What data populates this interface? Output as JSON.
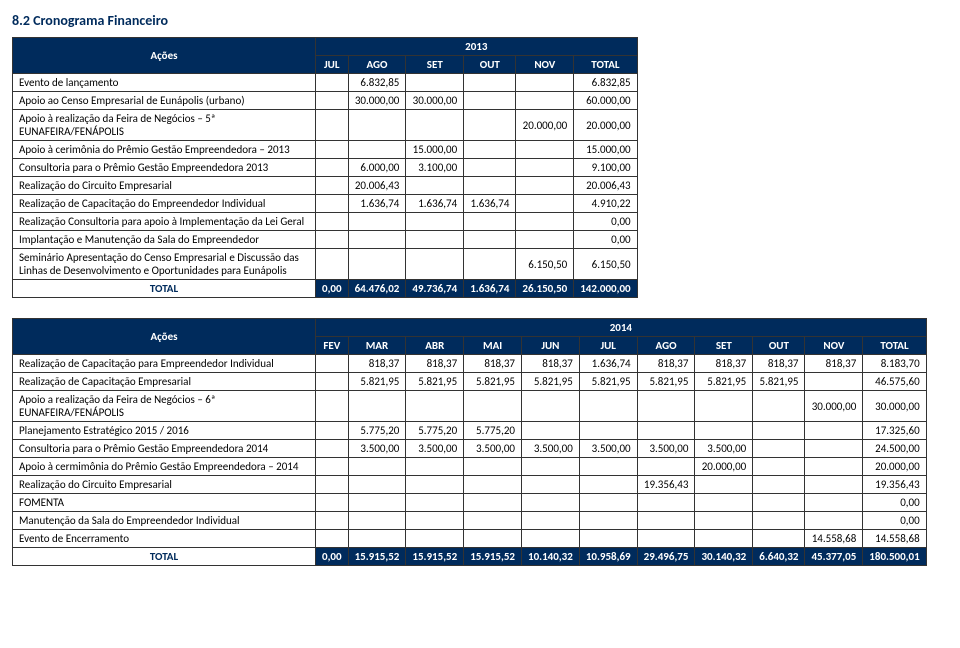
{
  "section_title": "8.2 Cronograma Financeiro",
  "table2013": {
    "acoes_header": "Ações",
    "year": "2013",
    "months": [
      "JUL",
      "AGO",
      "SET",
      "OUT",
      "NOV",
      "TOTAL"
    ],
    "rows": [
      {
        "label": "Evento de lançamento",
        "c": [
          "",
          "6.832,85",
          "",
          "",
          "",
          "6.832,85"
        ]
      },
      {
        "label": "Apoio ao Censo Empresarial de Eunápolis  (urbano)",
        "c": [
          "",
          "30.000,00",
          "30.000,00",
          "",
          "",
          "60.000,00"
        ]
      },
      {
        "label": "Apoio à realização da Feira de Negócios – 5ª EUNAFEIRA/FENÁPOLIS",
        "c": [
          "",
          "",
          "",
          "",
          "20.000,00",
          "20.000,00"
        ]
      },
      {
        "label": "Apoio à cerimônia do Prêmio Gestão Empreendedora – 2013",
        "c": [
          "",
          "",
          "15.000,00",
          "",
          "",
          "15.000,00"
        ]
      },
      {
        "label": "Consultoria para o Prêmio Gestão Empreendedora 2013",
        "c": [
          "",
          "6.000,00",
          "3.100,00",
          "",
          "",
          "9.100,00"
        ]
      },
      {
        "label": "Realização do Circuito Empresarial",
        "c": [
          "",
          "20.006,43",
          "",
          "",
          "",
          "20.006,43"
        ]
      },
      {
        "label": "Realização de Capacitação do Empreendedor Individual",
        "c": [
          "",
          "1.636,74",
          "1.636,74",
          "1.636,74",
          "",
          "4.910,22"
        ]
      },
      {
        "label": "Realização Consultoria para apoio à Implementação da Lei Geral",
        "c": [
          "",
          "",
          "",
          "",
          "",
          "0,00"
        ]
      },
      {
        "label": "Implantação e Manutenção da Sala do Empreendedor",
        "c": [
          "",
          "",
          "",
          "",
          "",
          "0,00"
        ]
      },
      {
        "label": "Seminário Apresentação do Censo Empresarial e Discussão das Linhas de Desenvolvimento e Oportunidades para Eunápolis",
        "c": [
          "",
          "",
          "",
          "",
          "6.150,50",
          "6.150,50"
        ]
      }
    ],
    "total_label": "TOTAL",
    "total": [
      "0,00",
      "64.476,02",
      "49.736,74",
      "1.636,74",
      "26.150,50",
      "142.000,00"
    ]
  },
  "table2014": {
    "acoes_header": "Ações",
    "year": "2014",
    "months": [
      "FEV",
      "MAR",
      "ABR",
      "MAI",
      "JUN",
      "JUL",
      "AGO",
      "SET",
      "OUT",
      "NOV",
      "TOTAL"
    ],
    "rows": [
      {
        "label": "Realização de Capacitação para Empreendedor Individual",
        "c": [
          "",
          "818,37",
          "818,37",
          "818,37",
          "818,37",
          "1.636,74",
          "818,37",
          "818,37",
          "818,37",
          "818,37",
          "8.183,70"
        ]
      },
      {
        "label": "Realização de Capacitação Empresarial",
        "c": [
          "",
          "5.821,95",
          "5.821,95",
          "5.821,95",
          "5.821,95",
          "5.821,95",
          "5.821,95",
          "5.821,95",
          "5.821,95",
          "",
          "46.575,60"
        ]
      },
      {
        "label": "Apoio a realização da Feira de Negócios – 6ª EUNAFEIRA/FENÁPOLIS",
        "c": [
          "",
          "",
          "",
          "",
          "",
          "",
          "",
          "",
          "",
          "30.000,00",
          "30.000,00"
        ]
      },
      {
        "label": "Planejamento Estratégico 2015 / 2016",
        "c": [
          "",
          "5.775,20",
          "5.775,20",
          "5.775,20",
          "",
          "",
          "",
          "",
          "",
          "",
          "17.325,60"
        ]
      },
      {
        "label": "Consultoria para o Prêmio Gestão Empreendedora 2014",
        "c": [
          "",
          "3.500,00",
          "3.500,00",
          "3.500,00",
          "3.500,00",
          "3.500,00",
          "3.500,00",
          "3.500,00",
          "",
          "",
          "24.500,00"
        ]
      },
      {
        "label": "Apoio à cermimônia do Prêmio Gestão Empreendedora – 2014",
        "c": [
          "",
          "",
          "",
          "",
          "",
          "",
          "",
          "20.000,00",
          "",
          "",
          "20.000,00"
        ]
      },
      {
        "label": "Realização do Circuito Empresarial",
        "c": [
          "",
          "",
          "",
          "",
          "",
          "",
          "19.356,43",
          "",
          "",
          "",
          "19.356,43"
        ]
      },
      {
        "label": "FOMENTA",
        "c": [
          "",
          "",
          "",
          "",
          "",
          "",
          "",
          "",
          "",
          "",
          "0,00"
        ]
      },
      {
        "label": "Manutenção da Sala do Empreendedor Individual",
        "c": [
          "",
          "",
          "",
          "",
          "",
          "",
          "",
          "",
          "",
          "",
          "0,00"
        ]
      },
      {
        "label": "Evento de Encerramento",
        "c": [
          "",
          "",
          "",
          "",
          "",
          "",
          "",
          "",
          "",
          "14.558,68",
          "14.558,68"
        ]
      }
    ],
    "total_label": "TOTAL",
    "total": [
      "0,00",
      "15.915,52",
      "15.915,52",
      "15.915,52",
      "10.140,32",
      "10.958,69",
      "29.496,75",
      "30.140,32",
      "6.640,32",
      "45.377,05",
      "180.500,01"
    ]
  }
}
